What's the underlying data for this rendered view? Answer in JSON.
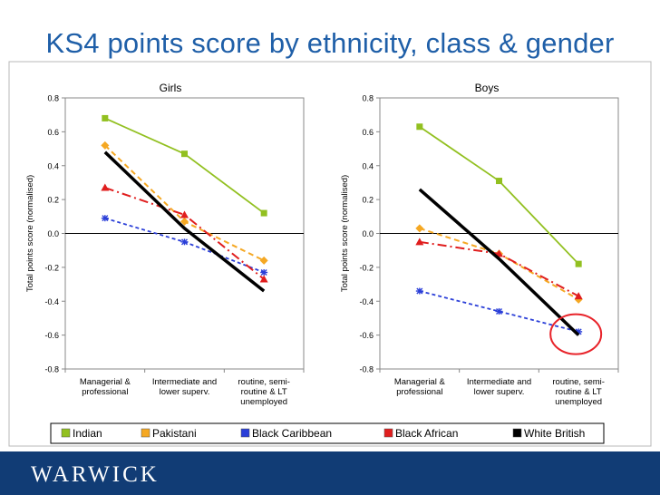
{
  "page": {
    "title": "KS4 points score by ethnicity, class & gender",
    "logo_text": "WARWICK"
  },
  "colors": {
    "title": "#1f5fa8",
    "footer": "#113c75",
    "highlight_circle": "#e8232a"
  },
  "chart_data": [
    {
      "type": "line",
      "title": "Girls",
      "ylabel": "Total points score (normalised)",
      "ylim": [
        -0.8,
        0.8
      ],
      "yticks": [
        "0.8",
        "0.6",
        "0.4",
        "0.2",
        "0.0",
        "-0.2",
        "-0.4",
        "-0.6",
        "-0.8"
      ],
      "categories": [
        [
          "Managerial &",
          "professional"
        ],
        [
          "Intermediate and",
          "lower superv."
        ],
        [
          "routine, semi-",
          "routine & LT",
          "unemployed"
        ]
      ],
      "series": [
        {
          "name": "Indian",
          "values": [
            0.68,
            0.47,
            0.12
          ]
        },
        {
          "name": "Pakistani",
          "values": [
            0.52,
            0.07,
            -0.16
          ]
        },
        {
          "name": "Black Caribbean",
          "values": [
            0.09,
            -0.05,
            -0.23
          ]
        },
        {
          "name": "Black African",
          "values": [
            0.27,
            0.11,
            -0.27
          ]
        },
        {
          "name": "White British",
          "values": [
            0.48,
            0.03,
            -0.34
          ]
        }
      ]
    },
    {
      "type": "line",
      "title": "Boys",
      "ylabel": "Total points score (normalised)",
      "ylim": [
        -0.8,
        0.8
      ],
      "yticks": [
        "0.8",
        "0.6",
        "0.4",
        "0.2",
        "0.0",
        "-0.2",
        "-0.4",
        "-0.6",
        "-0.8"
      ],
      "categories": [
        [
          "Managerial &",
          "professional"
        ],
        [
          "Intermediate and",
          "lower superv."
        ],
        [
          "routine, semi-",
          "routine & LT",
          "unemployed"
        ]
      ],
      "annotation": "circle around White British routine, semi-routine & LT unemployed value",
      "series": [
        {
          "name": "Indian",
          "values": [
            0.63,
            0.31,
            -0.18
          ]
        },
        {
          "name": "Pakistani",
          "values": [
            0.03,
            -0.12,
            -0.39
          ]
        },
        {
          "name": "Black Caribbean",
          "values": [
            -0.34,
            -0.46,
            -0.58
          ]
        },
        {
          "name": "Black African",
          "values": [
            -0.05,
            -0.12,
            -0.37
          ]
        },
        {
          "name": "White British",
          "values": [
            0.26,
            -0.15,
            -0.6
          ]
        }
      ]
    }
  ],
  "legend": [
    {
      "name": "Indian",
      "color": "#92c020"
    },
    {
      "name": "Pakistani",
      "color": "#f5a823"
    },
    {
      "name": "Black Caribbean",
      "color": "#2b3fd8"
    },
    {
      "name": "Black African",
      "color": "#e01e1e"
    },
    {
      "name": "White British",
      "color": "#000000"
    }
  ],
  "series_style": {
    "Indian": {
      "marker": "square",
      "dash": "",
      "width": 1.8
    },
    "Pakistani": {
      "marker": "diamond",
      "dash": "6,4",
      "width": 2
    },
    "Black Caribbean": {
      "marker": "star",
      "dash": "4,3",
      "width": 1.8
    },
    "Black African": {
      "marker": "triangle",
      "dash": "10,4,2,4",
      "width": 2
    },
    "White British": {
      "marker": "none",
      "dash": "",
      "width": 3.5
    }
  }
}
